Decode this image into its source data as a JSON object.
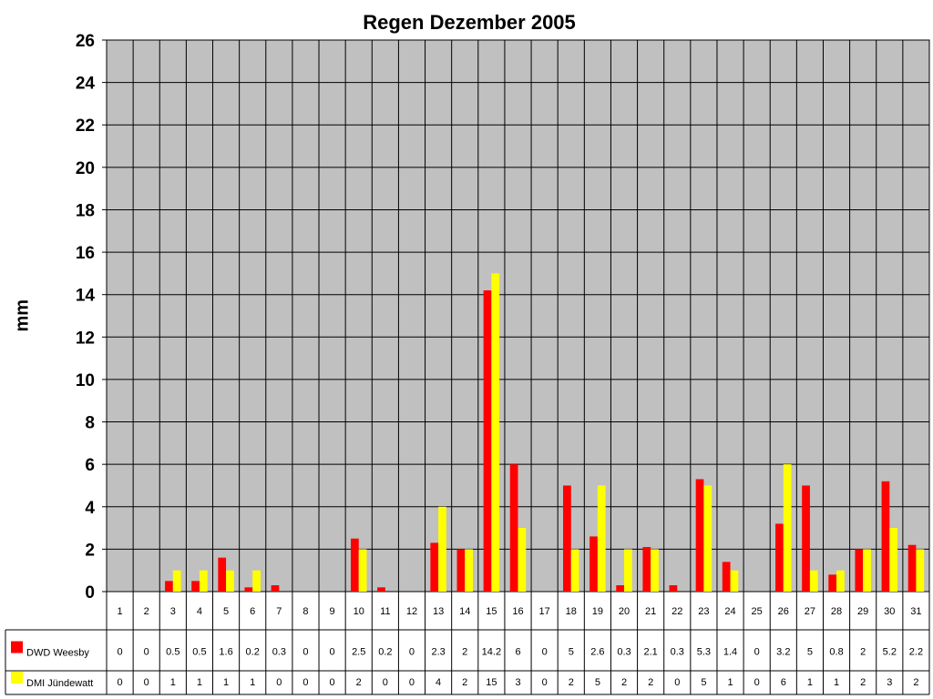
{
  "chart_data": {
    "type": "bar",
    "title": "Regen Dezember 2005",
    "xlabel": "",
    "ylabel": "mm",
    "ylim": [
      0,
      26
    ],
    "ytick_step": 2,
    "grid": true,
    "plot_background": "#c0c0c0",
    "legend_placement": "data-table",
    "categories": [
      "1",
      "2",
      "3",
      "4",
      "5",
      "6",
      "7",
      "8",
      "9",
      "10",
      "11",
      "12",
      "13",
      "14",
      "15",
      "16",
      "17",
      "18",
      "19",
      "20",
      "21",
      "22",
      "23",
      "24",
      "25",
      "26",
      "27",
      "28",
      "29",
      "30",
      "31"
    ],
    "series": [
      {
        "name": "DWD Weesby",
        "color": "#ff0000",
        "values": [
          0,
          0,
          0.5,
          0.5,
          1.6,
          0.2,
          0.3,
          0,
          0,
          2.5,
          0.2,
          0,
          2.3,
          2,
          14.2,
          6,
          0,
          5,
          2.6,
          0.3,
          2.1,
          0.3,
          5.3,
          1.4,
          0,
          3.2,
          5,
          0.8,
          2,
          5.2,
          2.2
        ]
      },
      {
        "name": "DMI Jündewatt",
        "color": "#ffff00",
        "values": [
          0,
          0,
          1,
          1,
          1,
          1,
          0,
          0,
          0,
          2,
          0,
          0,
          4,
          2,
          15,
          3,
          0,
          2,
          5,
          2,
          2,
          0,
          5,
          1,
          0,
          6,
          1,
          1,
          2,
          3,
          2
        ]
      }
    ]
  }
}
